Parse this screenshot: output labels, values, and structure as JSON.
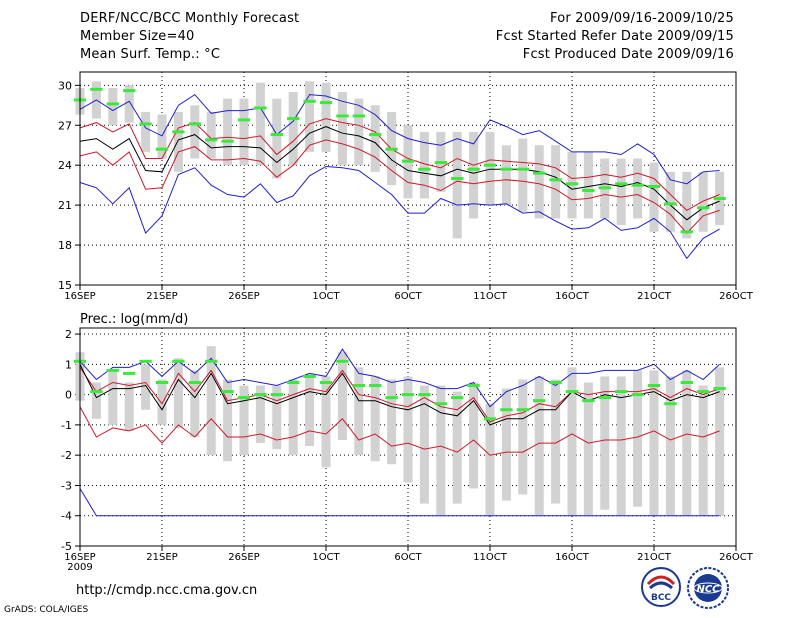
{
  "header": {
    "title": "DERF/NCC/BCC Monthly Forecast",
    "member_size": "Member Size=40",
    "variable": "Mean Surf. Temp.: °C",
    "period": "For 2009/09/16-2009/10/25",
    "fcst_started": "Fcst Started Refer Date 2009/09/15",
    "fcst_produced": "Fcst Produced Date 2009/09/16"
  },
  "footer": {
    "url": "http://cmdp.ncc.cma.gov.cn",
    "credit": "GrADS: COLA/IGES",
    "logo_bcc": "BCC",
    "logo_ncc": "NCC"
  },
  "colors": {
    "blue": "#1f1fd0",
    "red": "#d01828",
    "black": "#000000",
    "green": "#3ce83c",
    "gray": "#d2d2d2"
  },
  "chart_data": [
    {
      "type": "line",
      "id": "temperature",
      "ylabel": "Mean Surf. Temp.: °C",
      "ylim": [
        15,
        31
      ],
      "yticks": [
        15,
        18,
        21,
        24,
        27,
        30
      ],
      "xlim": [
        0,
        40
      ],
      "xticks": [
        {
          "at": 0,
          "label": "16SEP",
          "sub": "2009"
        },
        {
          "at": 5,
          "label": "21SEP"
        },
        {
          "at": 10,
          "label": "26SEP"
        },
        {
          "at": 15,
          "label": "1OCT"
        },
        {
          "at": 20,
          "label": "6OCT"
        },
        {
          "at": 25,
          "label": "11OCT"
        },
        {
          "at": 30,
          "label": "16OCT"
        },
        {
          "at": 35,
          "label": "21OCT"
        },
        {
          "at": 40,
          "label": "26OCT"
        }
      ],
      "x": [
        0,
        1,
        2,
        3,
        4,
        5,
        6,
        7,
        8,
        9,
        10,
        11,
        12,
        13,
        14,
        15,
        16,
        17,
        18,
        19,
        20,
        21,
        22,
        23,
        24,
        25,
        26,
        27,
        28,
        29,
        30,
        31,
        32,
        33,
        34,
        35,
        36,
        37,
        38,
        39
      ],
      "series": [
        {
          "name": "max",
          "color": "blue",
          "values": [
            28.2,
            28.9,
            28.1,
            28.8,
            26.8,
            26.2,
            28.5,
            29.3,
            27.9,
            28.1,
            28.1,
            28.3,
            26.3,
            27.3,
            29.3,
            29.2,
            28.8,
            28.5,
            27.8,
            26.6,
            26.0,
            25.7,
            25.5,
            26.0,
            25.6,
            27.4,
            26.9,
            26.3,
            26.6,
            25.8,
            25.0,
            25.0,
            25.0,
            24.8,
            25.6,
            24.8,
            22.9,
            22.6,
            23.5,
            23.6
          ]
        },
        {
          "name": "upper",
          "color": "red",
          "values": [
            26.8,
            27.2,
            26.5,
            27.1,
            24.5,
            24.5,
            26.8,
            27.2,
            26.0,
            26.1,
            26.0,
            26.2,
            24.8,
            25.8,
            27.1,
            27.5,
            27.2,
            27.0,
            26.5,
            25.2,
            24.5,
            24.1,
            23.8,
            24.5,
            24.0,
            24.4,
            24.3,
            24.2,
            24.1,
            23.8,
            23.0,
            23.1,
            23.3,
            23.1,
            23.4,
            23.0,
            21.8,
            20.6,
            21.3,
            21.8
          ]
        },
        {
          "name": "mean",
          "color": "black",
          "values": [
            25.8,
            26.0,
            25.2,
            26.0,
            23.6,
            23.5,
            25.9,
            26.3,
            25.3,
            25.4,
            25.4,
            25.3,
            24.2,
            25.2,
            26.4,
            26.9,
            26.4,
            26.2,
            25.7,
            24.4,
            23.6,
            23.4,
            23.2,
            23.7,
            23.4,
            23.7,
            23.7,
            23.7,
            23.5,
            23.1,
            22.2,
            22.4,
            22.6,
            22.4,
            22.7,
            22.2,
            21.0,
            19.9,
            20.8,
            21.3
          ]
        },
        {
          "name": "lower",
          "color": "red",
          "values": [
            24.7,
            25.0,
            24.0,
            25.0,
            22.2,
            22.3,
            25.0,
            25.4,
            24.4,
            24.4,
            24.5,
            24.3,
            23.1,
            24.0,
            25.5,
            25.9,
            25.6,
            25.2,
            24.6,
            23.6,
            22.7,
            22.5,
            22.1,
            22.8,
            22.6,
            22.8,
            22.9,
            22.8,
            22.6,
            22.2,
            21.4,
            21.5,
            21.8,
            21.6,
            21.8,
            21.2,
            20.3,
            18.9,
            20.2,
            20.6
          ]
        },
        {
          "name": "min",
          "color": "blue",
          "values": [
            22.7,
            22.3,
            21.1,
            22.3,
            18.9,
            20.2,
            23.3,
            23.8,
            22.5,
            21.8,
            21.6,
            22.6,
            21.2,
            21.7,
            23.2,
            23.9,
            23.8,
            23.6,
            22.7,
            21.8,
            20.4,
            20.4,
            21.5,
            21.0,
            21.1,
            21.0,
            21.1,
            20.4,
            20.5,
            19.8,
            19.2,
            19.3,
            20.0,
            19.1,
            19.3,
            20.0,
            19.0,
            17.0,
            18.5,
            19.2
          ]
        },
        {
          "name": "obs",
          "color": "green",
          "values": [
            28.9,
            29.7,
            28.6,
            29.6,
            27.1,
            25.2,
            26.5,
            27.1,
            25.9,
            25.8,
            27.4,
            28.3,
            26.3,
            27.5,
            28.8,
            28.7,
            27.7,
            27.7,
            26.3,
            25.2,
            24.3,
            23.7,
            24.2,
            23.0,
            23.7,
            24.0,
            23.7,
            23.7,
            23.4,
            22.9,
            22.6,
            22.1,
            22.3,
            22.6,
            22.5,
            22.4,
            21.1,
            19.0,
            20.8,
            21.5
          ]
        }
      ],
      "bars_low": [
        27.8,
        27.5,
        27.0,
        27.2,
        25.0,
        24.5,
        23.5,
        24.5,
        24.5,
        24.0,
        24.0,
        24.0,
        23.0,
        24.0,
        25.0,
        25.0,
        24.0,
        24.0,
        23.5,
        22.5,
        21.5,
        21.5,
        22.0,
        18.5,
        20.0,
        21.0,
        21.0,
        20.5,
        20.0,
        20.0,
        20.0,
        20.0,
        20.0,
        19.5,
        20.0,
        19.0,
        19.0,
        18.5,
        19.0,
        19.5
      ],
      "bars_high": [
        29.8,
        30.3,
        29.8,
        30.0,
        28.0,
        27.8,
        28.0,
        28.5,
        28.0,
        29.0,
        29.0,
        30.2,
        29.0,
        29.5,
        30.3,
        30.2,
        29.5,
        29.0,
        28.5,
        28.0,
        27.0,
        26.5,
        26.5,
        26.5,
        26.5,
        26.5,
        25.5,
        26.0,
        25.5,
        25.5,
        25.0,
        25.0,
        24.5,
        24.5,
        24.5,
        24.2,
        23.5,
        23.5,
        23.5,
        23.5
      ]
    },
    {
      "type": "line",
      "id": "precipitation",
      "ylabel": "Prec.: log(mm/d)",
      "ylim": [
        -5,
        2.2
      ],
      "yticks": [
        -5,
        -4,
        -3,
        -2,
        -1,
        0,
        1,
        2
      ],
      "xlim": [
        0,
        40
      ],
      "xticks": [
        {
          "at": 0,
          "label": "16SEP",
          "sub": "2009"
        },
        {
          "at": 5,
          "label": "21SEP"
        },
        {
          "at": 10,
          "label": "26SEP"
        },
        {
          "at": 15,
          "label": "1OCT"
        },
        {
          "at": 20,
          "label": "6OCT"
        },
        {
          "at": 25,
          "label": "11OCT"
        },
        {
          "at": 30,
          "label": "16OCT"
        },
        {
          "at": 35,
          "label": "21OCT"
        },
        {
          "at": 40,
          "label": "26OCT"
        }
      ],
      "x": [
        0,
        1,
        2,
        3,
        4,
        5,
        6,
        7,
        8,
        9,
        10,
        11,
        12,
        13,
        14,
        15,
        16,
        17,
        18,
        19,
        20,
        21,
        22,
        23,
        24,
        25,
        26,
        27,
        28,
        29,
        30,
        31,
        32,
        33,
        34,
        35,
        36,
        37,
        38,
        39
      ],
      "series": [
        {
          "name": "max",
          "color": "blue",
          "values": [
            1.1,
            0.5,
            0.9,
            0.9,
            1.1,
            0.6,
            1.1,
            0.7,
            1.2,
            0.4,
            0.5,
            0.4,
            0.3,
            0.5,
            0.7,
            0.6,
            1.5,
            0.7,
            0.6,
            0.4,
            0.5,
            0.4,
            0.2,
            0.2,
            0.4,
            -0.4,
            0.1,
            0.3,
            0.6,
            0.3,
            0.7,
            0.7,
            0.8,
            0.8,
            0.8,
            1.0,
            0.5,
            0.8,
            0.5,
            1.0
          ]
        },
        {
          "name": "upper",
          "color": "red",
          "values": [
            0.9,
            0.1,
            0.4,
            0.3,
            0.4,
            -0.3,
            0.7,
            0.1,
            0.8,
            -0.2,
            -0.1,
            0.0,
            -0.2,
            0.0,
            0.2,
            0.1,
            0.8,
            0.0,
            -0.1,
            -0.3,
            -0.4,
            -0.1,
            -0.4,
            -0.5,
            -0.1,
            -0.9,
            -0.7,
            -0.6,
            -0.3,
            -0.4,
            0.1,
            0.0,
            0.1,
            0.1,
            0.1,
            0.2,
            -0.1,
            0.2,
            0.0,
            0.2
          ]
        },
        {
          "name": "mean",
          "color": "black",
          "values": [
            1.0,
            -0.1,
            0.2,
            0.2,
            0.3,
            -0.5,
            0.5,
            -0.1,
            0.7,
            -0.3,
            -0.2,
            -0.1,
            -0.3,
            -0.1,
            0.1,
            0.0,
            0.7,
            -0.2,
            -0.2,
            -0.4,
            -0.5,
            -0.3,
            -0.6,
            -0.7,
            -0.2,
            -1.0,
            -0.8,
            -0.8,
            -0.5,
            -0.5,
            0.1,
            -0.2,
            0.0,
            -0.1,
            0.0,
            0.1,
            -0.2,
            0.0,
            -0.1,
            0.1
          ]
        },
        {
          "name": "lower",
          "color": "red",
          "values": [
            -0.4,
            -1.4,
            -1.1,
            -1.2,
            -1.0,
            -1.6,
            -1.0,
            -1.4,
            -0.8,
            -1.4,
            -1.4,
            -1.3,
            -1.5,
            -1.4,
            -1.2,
            -1.3,
            -0.8,
            -1.5,
            -1.3,
            -1.7,
            -1.6,
            -1.8,
            -1.7,
            -1.9,
            -1.5,
            -2.0,
            -1.9,
            -1.9,
            -1.6,
            -1.6,
            -1.3,
            -1.6,
            -1.5,
            -1.5,
            -1.4,
            -1.2,
            -1.5,
            -1.3,
            -1.4,
            -1.2
          ]
        },
        {
          "name": "min",
          "color": "blue",
          "values": [
            -3.1,
            -4.0,
            -4.0,
            -4.0,
            -4.0,
            -4.0,
            -4.0,
            -4.0,
            -4.0,
            -4.0,
            -4.0,
            -4.0,
            -4.0,
            -4.0,
            -4.0,
            -4.0,
            -4.0,
            -4.0,
            -4.0,
            -4.0,
            -4.0,
            -4.0,
            -4.0,
            -4.0,
            -4.0,
            -4.0,
            -4.0,
            -4.0,
            -4.0,
            -4.0,
            -4.0,
            -4.0,
            -4.0,
            -4.0,
            -4.0,
            -4.0,
            -4.0,
            -4.0,
            -4.0,
            -4.0
          ]
        },
        {
          "name": "obs",
          "color": "green",
          "values": [
            1.1,
            0.1,
            0.8,
            0.7,
            1.1,
            0.4,
            1.1,
            0.4,
            1.1,
            0.1,
            -0.1,
            0.0,
            0.0,
            0.4,
            0.6,
            0.4,
            1.1,
            0.3,
            0.3,
            -0.1,
            0.0,
            0.0,
            -0.3,
            -0.1,
            0.3,
            -0.8,
            -0.5,
            -0.5,
            -0.2,
            0.4,
            0.1,
            -0.2,
            -0.1,
            0.1,
            0.0,
            0.3,
            -0.3,
            0.4,
            0.1,
            0.2
          ]
        }
      ],
      "bars_low": [
        -0.2,
        -0.8,
        -1.0,
        -1.2,
        -0.5,
        -1.0,
        -1.1,
        -1.4,
        -2.0,
        -2.2,
        -2.0,
        -1.6,
        -1.8,
        -2.0,
        -1.7,
        -2.4,
        -1.5,
        -2.0,
        -2.2,
        -2.3,
        -2.9,
        -3.6,
        -4.0,
        -3.6,
        -3.1,
        -4.0,
        -3.5,
        -3.3,
        -4.0,
        -3.6,
        -4.0,
        -4.0,
        -3.8,
        -4.0,
        -3.7,
        -4.0,
        -4.0,
        -4.0,
        -4.0,
        -4.0
      ],
      "bars_high": [
        1.4,
        0.4,
        0.8,
        0.4,
        1.0,
        0.5,
        1.2,
        0.8,
        1.6,
        0.5,
        0.3,
        0.3,
        0.3,
        0.5,
        0.7,
        0.6,
        1.4,
        0.9,
        0.6,
        0.5,
        0.6,
        0.3,
        0.3,
        0.1,
        0.4,
        -0.3,
        0.2,
        0.5,
        0.6,
        0.5,
        0.9,
        0.4,
        0.6,
        0.6,
        0.8,
        0.8,
        0.6,
        0.8,
        0.3,
        0.9
      ]
    }
  ]
}
